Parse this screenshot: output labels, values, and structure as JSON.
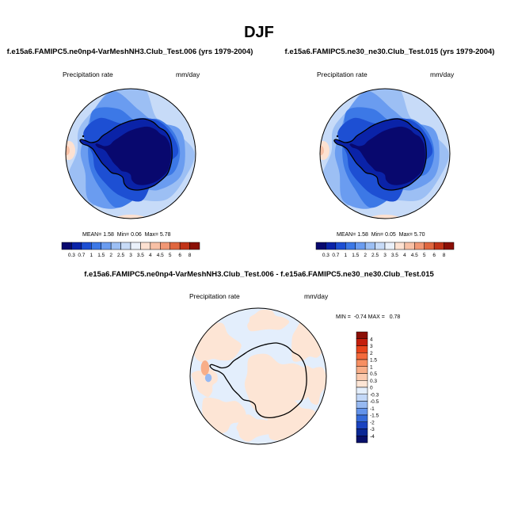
{
  "figure": {
    "season": "DJF"
  },
  "panel_left": {
    "title": "f.e15a6.FAMIPC5.ne0np4-VarMeshNH3.Club_Test.006 (yrs 1979-2004)",
    "variable": "Precipitation rate",
    "units": "mm/day",
    "mean_label": "MEAN=",
    "mean": "1.58",
    "min_label": "Min=",
    "min": "0.06",
    "max_label": "Max=",
    "max": "5.78"
  },
  "panel_right": {
    "title": "f.e15a6.FAMIPC5.ne30_ne30.Club_Test.015 (yrs 1979-2004)",
    "variable": "Precipitation rate",
    "units": "mm/day",
    "mean_label": "MEAN=",
    "mean": "1.58",
    "min_label": "Min=",
    "min": "0.05",
    "max_label": "Max=",
    "max": "5.70"
  },
  "panel_diff": {
    "title": "f.e15a6.FAMIPC5.ne0np4-VarMeshNH3.Club_Test.006 - f.e15a6.FAMIPC5.ne30_ne30.Club_Test.015",
    "variable": "Precipitation rate",
    "units": "mm/day",
    "minmax_text": "MIN =  -0.74 MAX =   0.78"
  },
  "chart_data": [
    {
      "type": "heatmap",
      "title": "f.e15a6.FAMIPC5.ne0np4-VarMeshNH3.Club_Test.006 (yrs 1979-2004)",
      "projection": "south polar stereographic",
      "variable": "Precipitation rate",
      "units": "mm/day",
      "mean": 1.58,
      "min": 0.06,
      "max": 5.78,
      "colorbar_ticks": [
        "0.3",
        "0.7",
        "1",
        "1.5",
        "2",
        "2.5",
        "3",
        "3.5",
        "4",
        "4.5",
        "5",
        "6",
        "8"
      ],
      "colorbar_levels": [
        0.3,
        0.7,
        1,
        1.5,
        2,
        2.5,
        3,
        3.5,
        4,
        4.5,
        5,
        6,
        8
      ],
      "colorbar_colors": [
        "#08086e",
        "#0a23a8",
        "#1d4fd3",
        "#3c78e6",
        "#6a9cf0",
        "#9cbff4",
        "#c7dbf8",
        "#eaf1fb",
        "#fde1d1",
        "#f8c0a5",
        "#f19774",
        "#e0673f",
        "#c13418",
        "#8b0f06"
      ],
      "colorbar_placement": "bottom"
    },
    {
      "type": "heatmap",
      "title": "f.e15a6.FAMIPC5.ne30_ne30.Club_Test.015 (yrs 1979-2004)",
      "projection": "south polar stereographic",
      "variable": "Precipitation rate",
      "units": "mm/day",
      "mean": 1.58,
      "min": 0.05,
      "max": 5.7,
      "colorbar_ticks": [
        "0.3",
        "0.7",
        "1",
        "1.5",
        "2",
        "2.5",
        "3",
        "3.5",
        "4",
        "4.5",
        "5",
        "6",
        "8"
      ],
      "colorbar_levels": [
        0.3,
        0.7,
        1,
        1.5,
        2,
        2.5,
        3,
        3.5,
        4,
        4.5,
        5,
        6,
        8
      ],
      "colorbar_colors": [
        "#08086e",
        "#0a23a8",
        "#1d4fd3",
        "#3c78e6",
        "#6a9cf0",
        "#9cbff4",
        "#c7dbf8",
        "#eaf1fb",
        "#fde1d1",
        "#f8c0a5",
        "#f19774",
        "#e0673f",
        "#c13418",
        "#8b0f06"
      ],
      "colorbar_placement": "bottom"
    },
    {
      "type": "heatmap",
      "title": "f.e15a6.FAMIPC5.ne0np4-VarMeshNH3.Club_Test.006 - f.e15a6.FAMIPC5.ne30_ne30.Club_Test.015",
      "projection": "south polar stereographic",
      "variable": "Precipitation rate",
      "units": "mm/day",
      "min": -0.74,
      "max": 0.78,
      "colorbar_ticks": [
        "4",
        "3",
        "2",
        "1.5",
        "1",
        "0.5",
        "0.3",
        "0",
        "-0.3",
        "-0.5",
        "-1",
        "-1.5",
        "-2",
        "-3",
        "-4"
      ],
      "colorbar_levels": [
        4,
        3,
        2,
        1.5,
        1,
        0.5,
        0.3,
        0,
        -0.3,
        -0.5,
        -1,
        -1.5,
        -2,
        -3,
        -4
      ],
      "colorbar_colors": [
        "#8b0f06",
        "#c41e0c",
        "#e8441c",
        "#f46a3c",
        "#f78f62",
        "#f8ae88",
        "#fbcaae",
        "#fde5d5",
        "#e3eefc",
        "#c3d8f8",
        "#97b9f1",
        "#6393ea",
        "#356ad9",
        "#1a43c0",
        "#0b2896",
        "#08106a"
      ],
      "colorbar_placement": "right"
    }
  ]
}
